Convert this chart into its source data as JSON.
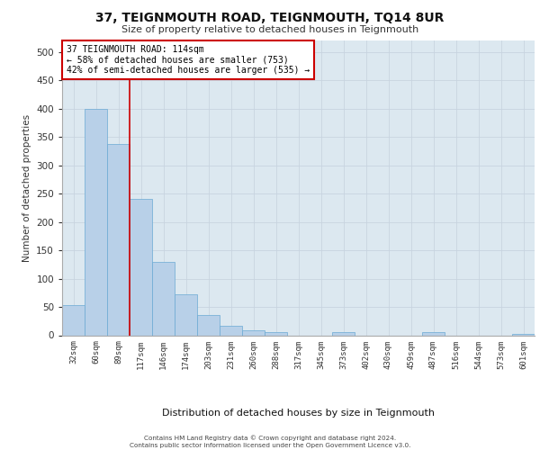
{
  "title": "37, TEIGNMOUTH ROAD, TEIGNMOUTH, TQ14 8UR",
  "subtitle": "Size of property relative to detached houses in Teignmouth",
  "xlabel": "Distribution of detached houses by size in Teignmouth",
  "ylabel": "Number of detached properties",
  "categories": [
    "32sqm",
    "60sqm",
    "89sqm",
    "117sqm",
    "146sqm",
    "174sqm",
    "203sqm",
    "231sqm",
    "260sqm",
    "288sqm",
    "317sqm",
    "345sqm",
    "373sqm",
    "402sqm",
    "430sqm",
    "459sqm",
    "487sqm",
    "516sqm",
    "544sqm",
    "573sqm",
    "601sqm"
  ],
  "bar_values": [
    53,
    400,
    338,
    240,
    130,
    73,
    35,
    17,
    8,
    5,
    0,
    0,
    5,
    0,
    0,
    0,
    5,
    0,
    0,
    0,
    2
  ],
  "bar_color": "#b8d0e8",
  "bar_edge_color": "#6aaad4",
  "grid_color": "#c8d4e0",
  "bg_color": "#dce8f0",
  "annotation_text": "37 TEIGNMOUTH ROAD: 114sqm\n← 58% of detached houses are smaller (753)\n42% of semi-detached houses are larger (535) →",
  "annotation_box_color": "#ffffff",
  "annotation_border_color": "#cc0000",
  "red_line_x": 2.5,
  "red_line_color": "#cc0000",
  "ylim": [
    0,
    520
  ],
  "yticks": [
    0,
    50,
    100,
    150,
    200,
    250,
    300,
    350,
    400,
    450,
    500
  ],
  "footer_line1": "Contains HM Land Registry data © Crown copyright and database right 2024.",
  "footer_line2": "Contains public sector information licensed under the Open Government Licence v3.0."
}
